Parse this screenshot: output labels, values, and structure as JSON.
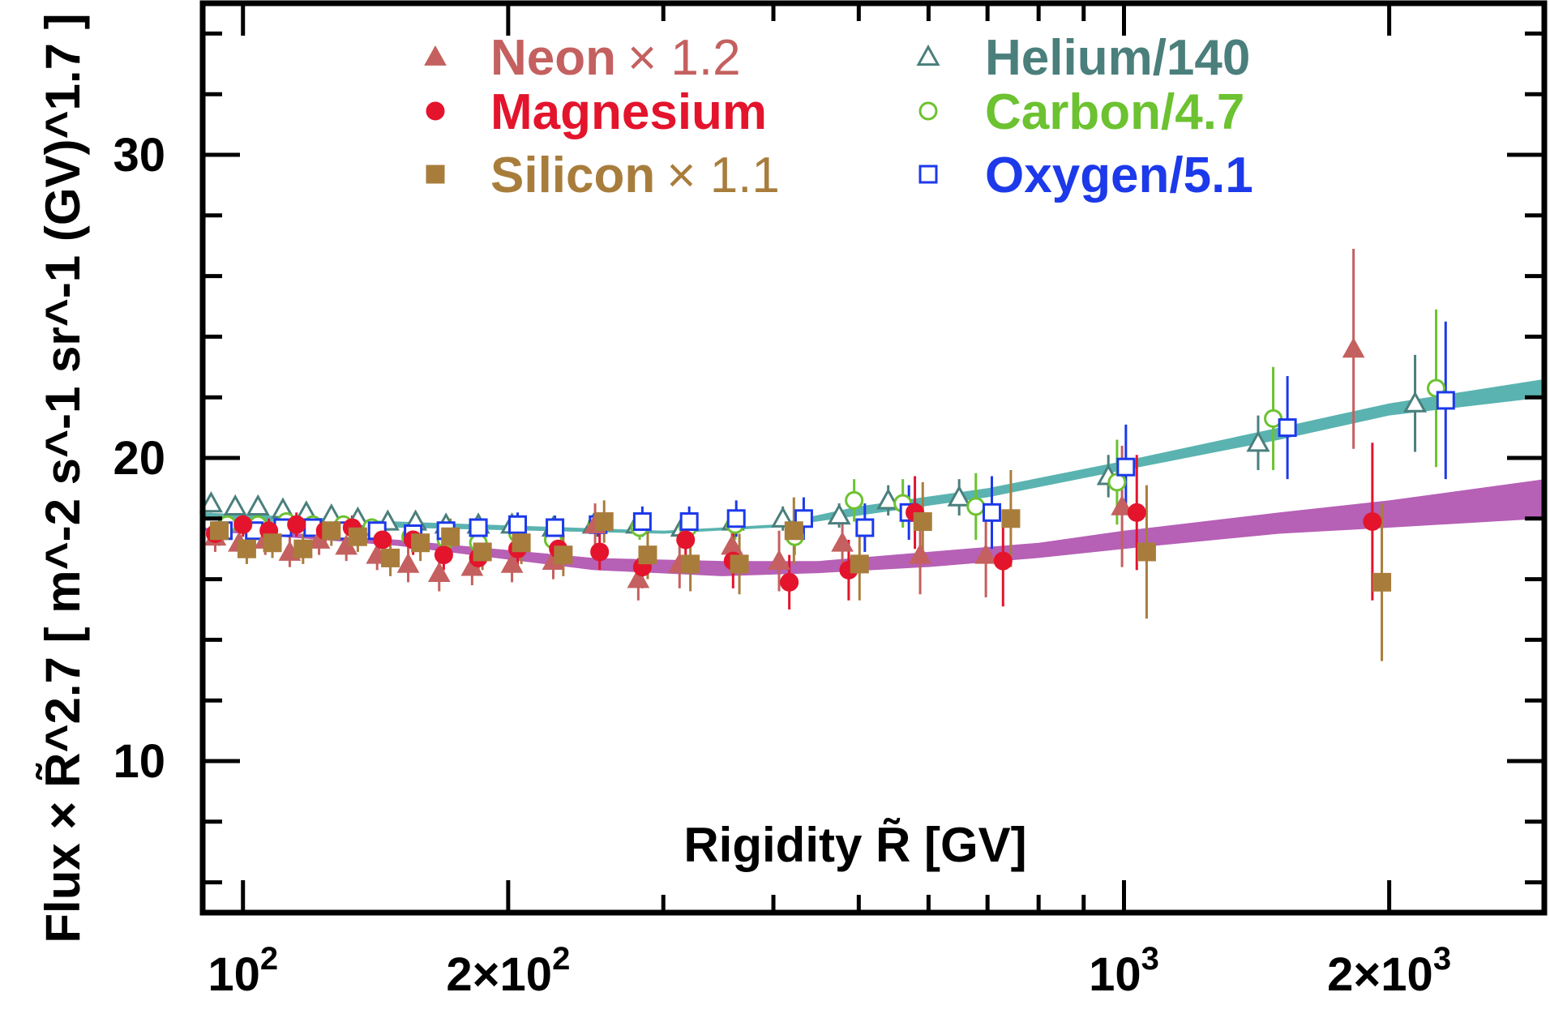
{
  "chart_data": {
    "type": "scatter",
    "title": "",
    "xlabel": "Rigidity R̃ [GV]",
    "ylabel": "Flux × R̃^2.7 [ m^-2 s^-1 sr^-1 (GV)^1.7 ]",
    "xscale": "log",
    "xlim": [
      90,
      3000
    ],
    "ylim": [
      5,
      35
    ],
    "x_ticks": [
      {
        "value": 100,
        "base": "10",
        "exp": "2"
      },
      {
        "value": 200,
        "base": "2×10",
        "exp": "2"
      },
      {
        "value": 1000,
        "base": "10",
        "exp": "3"
      },
      {
        "value": 2000,
        "base": "2×10",
        "exp": "3"
      }
    ],
    "y_ticks": [
      {
        "value": 10,
        "label": "10"
      },
      {
        "value": 20,
        "label": "20"
      },
      {
        "value": 30,
        "label": "30"
      }
    ],
    "legend_position": "top",
    "legend": {
      "left": [
        {
          "name": "Neon",
          "suffix": "× 1.2",
          "symbol": "triangle-filled",
          "color": "#c4605f"
        },
        {
          "name": "Magnesium",
          "suffix": "",
          "symbol": "circle-filled",
          "color": "#e3142c"
        },
        {
          "name": "Silicon",
          "suffix": "× 1.1",
          "symbol": "square-filled",
          "color": "#a87d3c"
        }
      ],
      "right": [
        {
          "name": "Helium/140",
          "suffix": "",
          "symbol": "triangle-open",
          "color": "#4a7f7c"
        },
        {
          "name": "Carbon/4.7",
          "suffix": "",
          "symbol": "circle-open",
          "color": "#6cc230"
        },
        {
          "name": "Oxygen/5.1",
          "suffix": "",
          "symbol": "square-open",
          "color": "#1c39ea"
        }
      ]
    },
    "bands": [
      {
        "name": "light-nuclei-fit",
        "color": "#5ab3b0",
        "x": [
          90,
          150,
          300,
          400,
          500,
          700,
          1000,
          1500,
          2000,
          3000
        ],
        "lo": [
          18.0,
          17.7,
          17.5,
          17.7,
          18.1,
          18.7,
          19.6,
          20.6,
          21.4,
          22.0
        ],
        "hi": [
          18.2,
          17.9,
          17.6,
          17.8,
          18.4,
          19.0,
          19.9,
          21.0,
          21.8,
          22.6
        ]
      },
      {
        "name": "heavy-nuclei-fit",
        "color": "#b660b6",
        "x": [
          90,
          150,
          250,
          350,
          450,
          600,
          800,
          1000,
          1500,
          2000,
          3000
        ],
        "lo": [
          17.6,
          17.1,
          16.3,
          16.1,
          16.2,
          16.4,
          16.7,
          17.0,
          17.5,
          17.7,
          18.0
        ],
        "hi": [
          17.7,
          17.3,
          16.7,
          16.6,
          16.6,
          16.9,
          17.2,
          17.6,
          18.2,
          18.6,
          19.3
        ]
      }
    ],
    "series": [
      {
        "name": "Helium/140",
        "symbol": "triangle-open",
        "color": "#4a7f7c",
        "points": [
          [
            92,
            18.5,
            0.3
          ],
          [
            98,
            18.4,
            0.3
          ],
          [
            104,
            18.4,
            0.3
          ],
          [
            111,
            18.3,
            0.3
          ],
          [
            118,
            18.2,
            0.3
          ],
          [
            126,
            18.1,
            0.3
          ],
          [
            135,
            18.0,
            0.3
          ],
          [
            146,
            17.9,
            0.3
          ],
          [
            157,
            17.9,
            0.3
          ],
          [
            170,
            17.8,
            0.3
          ],
          [
            185,
            17.8,
            0.3
          ],
          [
            202,
            17.8,
            0.3
          ],
          [
            225,
            17.7,
            0.3
          ],
          [
            250,
            17.8,
            0.3
          ],
          [
            280,
            17.8,
            0.3
          ],
          [
            315,
            17.7,
            0.3
          ],
          [
            360,
            17.9,
            0.4
          ],
          [
            410,
            18.0,
            0.4
          ],
          [
            475,
            18.1,
            0.4
          ],
          [
            540,
            18.6,
            0.5
          ],
          [
            650,
            18.7,
            0.6
          ],
          [
            960,
            19.4,
            0.7
          ],
          [
            1420,
            20.5,
            0.9
          ],
          [
            2140,
            21.8,
            1.6
          ]
        ]
      },
      {
        "name": "Carbon/4.7",
        "symbol": "circle-open",
        "color": "#6cc230",
        "points": [
          [
            96,
            17.8,
            0.3
          ],
          [
            104,
            17.8,
            0.3
          ],
          [
            112,
            17.9,
            0.3
          ],
          [
            120,
            17.8,
            0.3
          ],
          [
            130,
            17.8,
            0.3
          ],
          [
            140,
            17.7,
            0.3
          ],
          [
            155,
            17.4,
            0.3
          ],
          [
            170,
            17.3,
            0.4
          ],
          [
            185,
            17.2,
            0.4
          ],
          [
            205,
            17.5,
            0.4
          ],
          [
            225,
            17.3,
            0.4
          ],
          [
            252,
            17.8,
            0.4
          ],
          [
            282,
            17.7,
            0.4
          ],
          [
            320,
            17.7,
            0.5
          ],
          [
            362,
            17.8,
            0.5
          ],
          [
            423,
            17.4,
            0.6
          ],
          [
            494,
            18.6,
            0.7
          ],
          [
            561,
            18.5,
            0.8
          ],
          [
            679,
            18.4,
            1.1
          ],
          [
            982,
            19.2,
            1.4
          ],
          [
            1477,
            21.3,
            1.7
          ],
          [
            2261,
            22.3,
            2.6
          ]
        ]
      },
      {
        "name": "Oxygen/5.1",
        "symbol": "square-open",
        "color": "#1c39ea",
        "points": [
          [
            95,
            17.6,
            0.3
          ],
          [
            103,
            17.6,
            0.3
          ],
          [
            111,
            17.7,
            0.3
          ],
          [
            120,
            17.7,
            0.3
          ],
          [
            130,
            17.6,
            0.3
          ],
          [
            142,
            17.6,
            0.3
          ],
          [
            156,
            17.5,
            0.3
          ],
          [
            170,
            17.6,
            0.3
          ],
          [
            185,
            17.7,
            0.3
          ],
          [
            205,
            17.8,
            0.4
          ],
          [
            226,
            17.7,
            0.4
          ],
          [
            253,
            17.8,
            0.4
          ],
          [
            284,
            17.9,
            0.5
          ],
          [
            321,
            17.9,
            0.5
          ],
          [
            363,
            18.0,
            0.6
          ],
          [
            433,
            18.0,
            0.7
          ],
          [
            508,
            17.7,
            0.8
          ],
          [
            570,
            18.2,
            0.9
          ],
          [
            708,
            18.2,
            1.2
          ],
          [
            1005,
            19.7,
            1.4
          ],
          [
            1533,
            21.0,
            1.7
          ],
          [
            2318,
            21.9,
            2.6
          ]
        ]
      },
      {
        "name": "Neon × 1.2",
        "symbol": "triangle-filled",
        "color": "#c4605f",
        "points": [
          [
            93,
            17.4,
            0.5
          ],
          [
            99,
            17.2,
            0.5
          ],
          [
            106,
            17.3,
            0.5
          ],
          [
            113,
            16.9,
            0.5
          ],
          [
            122,
            17.3,
            0.5
          ],
          [
            131,
            17.1,
            0.5
          ],
          [
            142,
            16.8,
            0.5
          ],
          [
            154,
            16.5,
            0.6
          ],
          [
            167,
            16.2,
            0.6
          ],
          [
            182,
            16.4,
            0.6
          ],
          [
            202,
            16.5,
            0.6
          ],
          [
            225,
            16.6,
            0.6
          ],
          [
            251,
            17.8,
            0.7
          ],
          [
            281,
            16.0,
            0.7
          ],
          [
            313,
            16.5,
            0.8
          ],
          [
            359,
            17.1,
            0.9
          ],
          [
            406,
            16.6,
            1.0
          ],
          [
            479,
            17.2,
            1.0
          ],
          [
            587,
            16.8,
            1.3
          ],
          [
            697,
            16.8,
            1.4
          ],
          [
            995,
            18.4,
            2.0
          ],
          [
            1822,
            23.6,
            3.3
          ]
        ]
      },
      {
        "name": "Magnesium",
        "symbol": "circle-filled",
        "color": "#e3142c",
        "points": [
          [
            93,
            17.5,
            0.4
          ],
          [
            100,
            17.8,
            0.4
          ],
          [
            107,
            17.6,
            0.4
          ],
          [
            115,
            17.8,
            0.4
          ],
          [
            124,
            17.6,
            0.4
          ],
          [
            133,
            17.7,
            0.4
          ],
          [
            144,
            17.3,
            0.4
          ],
          [
            156,
            17.3,
            0.5
          ],
          [
            169,
            16.8,
            0.5
          ],
          [
            185,
            16.7,
            0.5
          ],
          [
            205,
            17.0,
            0.6
          ],
          [
            228,
            17.0,
            0.6
          ],
          [
            254,
            16.9,
            0.6
          ],
          [
            284,
            16.4,
            0.7
          ],
          [
            318,
            17.3,
            0.8
          ],
          [
            360,
            16.6,
            0.9
          ],
          [
            417,
            15.9,
            0.9
          ],
          [
            487,
            16.3,
            1.0
          ],
          [
            579,
            18.2,
            1.2
          ],
          [
            729,
            16.6,
            1.5
          ],
          [
            1034,
            18.2,
            1.9
          ],
          [
            1914,
            17.9,
            2.6
          ]
        ]
      },
      {
        "name": "Silicon × 1.1",
        "symbol": "square-filled",
        "color": "#a87d3c",
        "points": [
          [
            94,
            17.6,
            0.5
          ],
          [
            101,
            17.0,
            0.5
          ],
          [
            108,
            17.2,
            0.5
          ],
          [
            117,
            17.0,
            0.5
          ],
          [
            126,
            17.6,
            0.5
          ],
          [
            135,
            17.4,
            0.5
          ],
          [
            147,
            16.7,
            0.6
          ],
          [
            159,
            17.2,
            0.6
          ],
          [
            172,
            17.4,
            0.6
          ],
          [
            187,
            16.9,
            0.6
          ],
          [
            207,
            17.2,
            0.7
          ],
          [
            231,
            16.8,
            0.7
          ],
          [
            257,
            17.9,
            0.7
          ],
          [
            288,
            16.8,
            0.8
          ],
          [
            322,
            16.5,
            0.9
          ],
          [
            366,
            16.5,
            1.0
          ],
          [
            422,
            17.6,
            1.1
          ],
          [
            501,
            16.5,
            1.2
          ],
          [
            591,
            17.9,
            1.3
          ],
          [
            744,
            18.0,
            1.6
          ],
          [
            1061,
            16.9,
            2.2
          ],
          [
            1962,
            15.9,
            2.6
          ]
        ]
      }
    ]
  }
}
